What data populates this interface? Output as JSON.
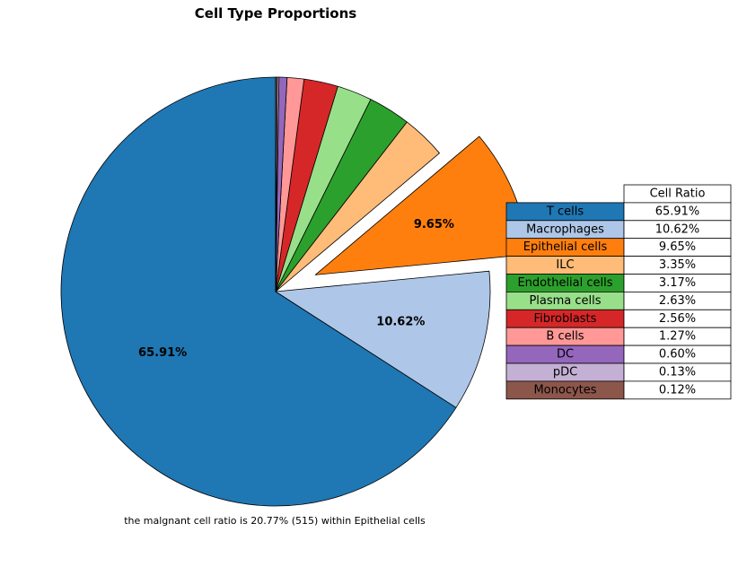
{
  "chart_data": {
    "type": "pie",
    "title": "Cell Type Proportions",
    "categories": [
      "T cells",
      "Macrophages",
      "Epithelial cells",
      "ILC",
      "Endothelial cells",
      "Plasma cells",
      "Fibroblasts",
      "B cells",
      "DC",
      "pDC",
      "Monocytes"
    ],
    "values": [
      65.91,
      10.62,
      9.65,
      3.35,
      3.17,
      2.63,
      2.56,
      1.27,
      0.6,
      0.13,
      0.12
    ],
    "colors": [
      "#1f77b4",
      "#aec7e8",
      "#ff7f0e",
      "#ffbb78",
      "#2ca02c",
      "#98df8a",
      "#d62728",
      "#ff9896",
      "#9467bd",
      "#c5b0d5",
      "#8c564b"
    ],
    "exploded": [
      "Epithelial cells"
    ],
    "labeled_slices": [
      "T cells",
      "Macrophages",
      "Epithelial cells"
    ],
    "value_format": "percent_2dp",
    "table": {
      "column_header": "Cell Ratio",
      "row_labels": [
        "T cells",
        "Macrophages",
        "Epithelial cells",
        "ILC",
        "Endothelial cells",
        "Plasma cells",
        "Fibroblasts",
        "B cells",
        "DC",
        "pDC",
        "Monocytes"
      ],
      "cells": [
        "65.91%",
        "10.62%",
        "9.65%",
        "3.35%",
        "3.17%",
        "2.63%",
        "2.56%",
        "1.27%",
        "0.60%",
        "0.13%",
        "0.12%"
      ]
    },
    "annotation": "the malgnant cell ratio is 20.77% (515) within Epithelial cells"
  }
}
